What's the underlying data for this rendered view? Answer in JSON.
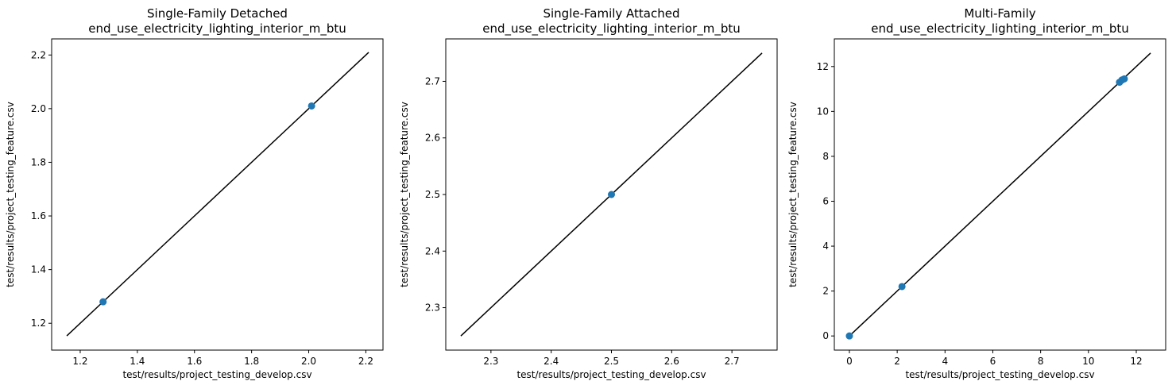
{
  "colors": {
    "point": "#1f77b4",
    "line": "#000000",
    "frame": "#000000",
    "background": "#ffffff"
  },
  "chart_data": [
    {
      "type": "scatter",
      "title": "Single-Family Detached\nend_use_electricity_lighting_interior_m_btu",
      "xlabel": "test/results/project_testing_develop.csv",
      "ylabel": "test/results/project_testing_feature.csv",
      "xlim": [
        1.1,
        2.26
      ],
      "ylim": [
        1.1,
        2.26
      ],
      "xticks": [
        "1.2",
        "1.4",
        "1.6",
        "1.8",
        "2.0",
        "2.2"
      ],
      "yticks": [
        "1.2",
        "1.4",
        "1.6",
        "1.8",
        "2.0",
        "2.2"
      ],
      "points": [
        {
          "x": 1.28,
          "y": 1.28
        },
        {
          "x": 2.01,
          "y": 2.01
        }
      ],
      "reference_line": {
        "from": 1.153,
        "to": 2.21
      }
    },
    {
      "type": "scatter",
      "title": "Single-Family Attached\nend_use_electricity_lighting_interior_m_btu",
      "xlabel": "test/results/project_testing_develop.csv",
      "ylabel": "test/results/project_testing_feature.csv",
      "xlim": [
        2.225,
        2.775
      ],
      "ylim": [
        2.225,
        2.775
      ],
      "xticks": [
        "2.3",
        "2.4",
        "2.5",
        "2.6",
        "2.7"
      ],
      "yticks": [
        "2.3",
        "2.4",
        "2.5",
        "2.6",
        "2.7"
      ],
      "points": [
        {
          "x": 2.5,
          "y": 2.5
        }
      ],
      "reference_line": {
        "from": 2.25,
        "to": 2.75
      }
    },
    {
      "type": "scatter",
      "title": "Multi-Family\nend_use_electricity_lighting_interior_m_btu",
      "xlabel": "test/results/project_testing_develop.csv",
      "ylabel": "test/results/project_testing_feature.csv",
      "xlim": [
        -0.63,
        13.23
      ],
      "ylim": [
        -0.63,
        13.23
      ],
      "xticks": [
        "0",
        "2",
        "4",
        "6",
        "8",
        "10",
        "12"
      ],
      "yticks": [
        "0",
        "2",
        "4",
        "6",
        "8",
        "10",
        "12"
      ],
      "points": [
        {
          "x": 0.0,
          "y": 0.0
        },
        {
          "x": 2.2,
          "y": 2.2
        },
        {
          "x": 11.3,
          "y": 11.3
        },
        {
          "x": 11.4,
          "y": 11.4
        },
        {
          "x": 11.5,
          "y": 11.45
        }
      ],
      "reference_line": {
        "from": 0.0,
        "to": 12.6
      }
    }
  ]
}
